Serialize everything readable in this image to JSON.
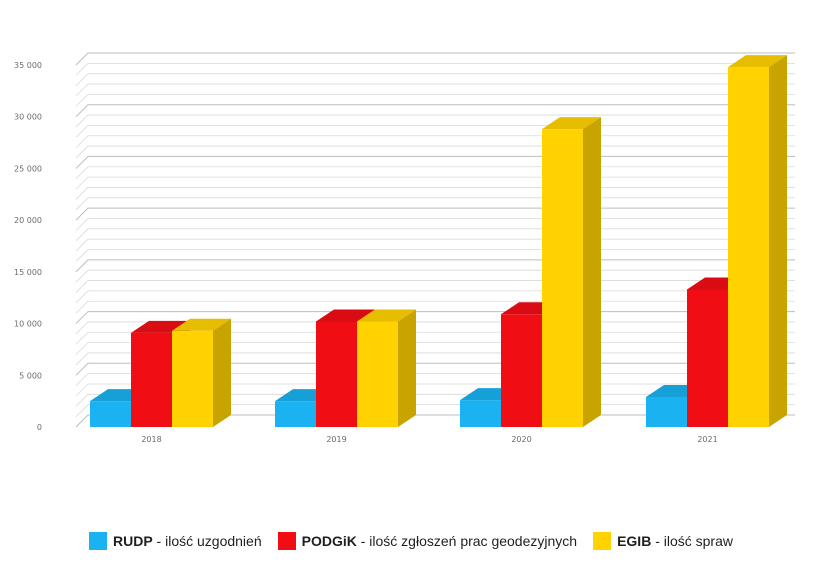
{
  "chart_data": {
    "type": "bar",
    "title": "",
    "xlabel": "",
    "ylabel": "",
    "categories": [
      "2018",
      "2019",
      "2020",
      "2021"
    ],
    "ylim": [
      0,
      35000
    ],
    "yticks": [
      0,
      5000,
      10000,
      15000,
      20000,
      25000,
      30000,
      35000
    ],
    "ytick_labels": [
      "0",
      "5 000",
      "10 000",
      "15 000",
      "20 000",
      "25 000",
      "30 000",
      "35 000"
    ],
    "grid": true,
    "three_d": true,
    "legend_position": "bottom",
    "series": [
      {
        "name": "RUDP",
        "description": " - ilość uzgodnień",
        "color": "#1ab2f0",
        "values": [
          2500,
          2500,
          2600,
          2900
        ]
      },
      {
        "name": "PODGiK",
        "description": " - ilość zgłoszeń prac geodezyjnych",
        "color": "#f00d14",
        "values": [
          9100,
          10200,
          10900,
          13300
        ]
      },
      {
        "name": "EGIB",
        "description": " - ilość spraw",
        "color": "#ffd200",
        "values": [
          9300,
          10200,
          28800,
          34800
        ]
      }
    ]
  }
}
